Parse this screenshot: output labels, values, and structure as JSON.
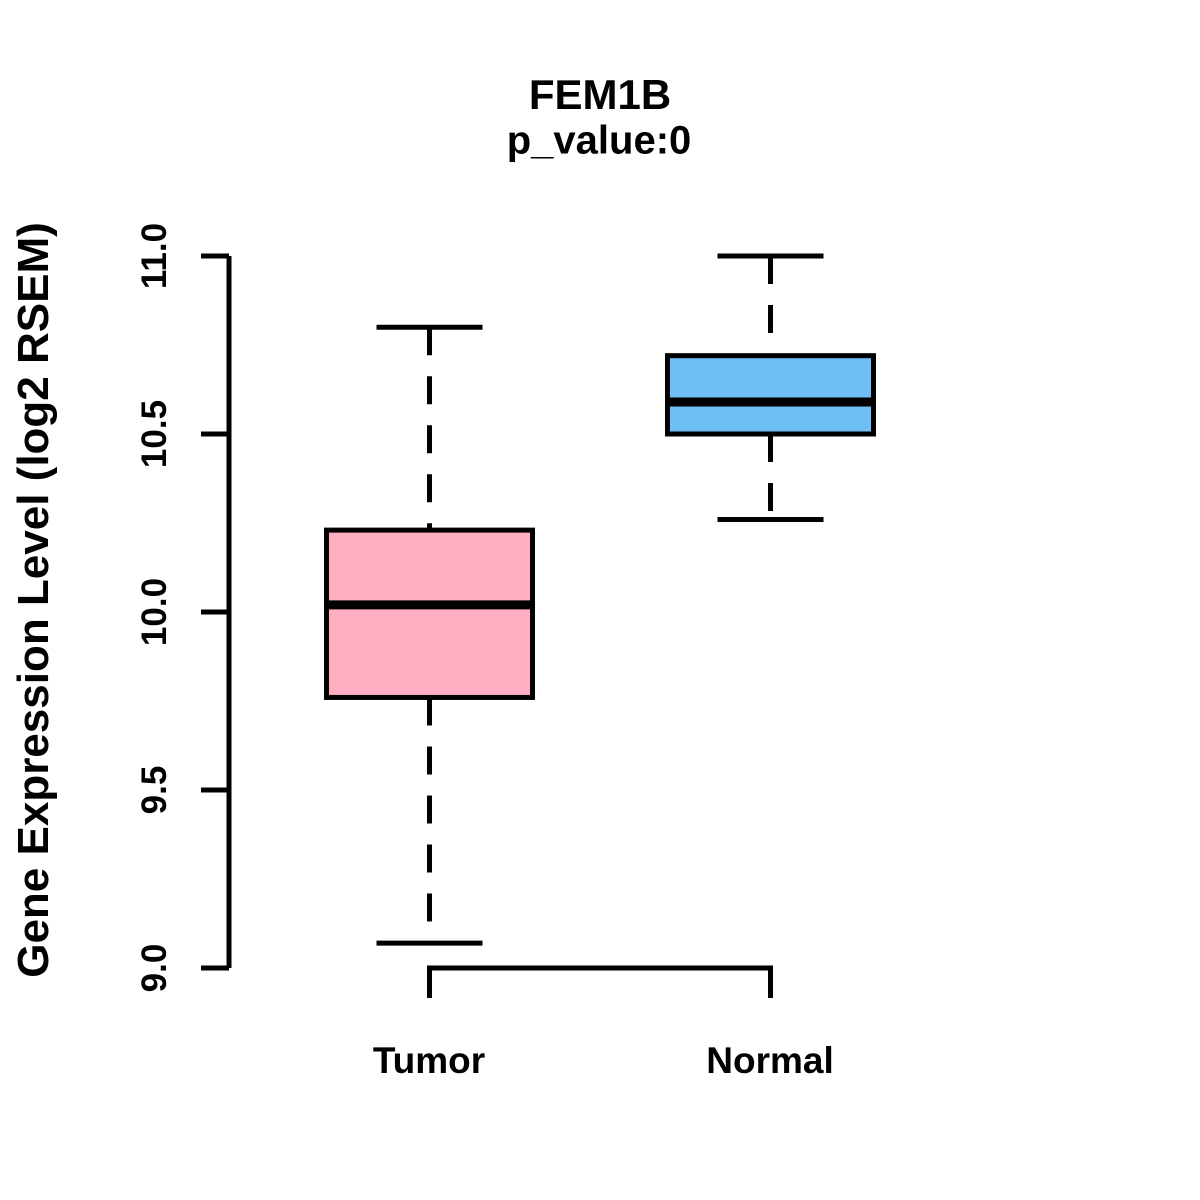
{
  "chart_data": {
    "type": "boxplot",
    "title": "FEM1B",
    "subtitle": "p_value:0",
    "ylabel": "Gene Expression Level (log2 RSEM)",
    "xlabel": "",
    "ylim": [
      9.0,
      11.0
    ],
    "yticks": [
      9.0,
      9.5,
      10.0,
      10.5,
      11.0
    ],
    "ytick_labels": [
      "9.0",
      "9.5",
      "10.0",
      "10.5",
      "11.0"
    ],
    "grid": "off",
    "legend": "none",
    "line_color": "#000000",
    "background_color": "#ffffff",
    "groups": [
      {
        "label": "Tumor",
        "fill_color": "#ffafc1",
        "lower_whisker": 9.07,
        "q1": 9.76,
        "median": 10.02,
        "q3": 10.23,
        "upper_whisker": 10.8
      },
      {
        "label": "Normal",
        "fill_color": "#6fbff7",
        "lower_whisker": 10.26,
        "q1": 10.5,
        "median": 10.59,
        "q3": 10.72,
        "upper_whisker": 11.0
      }
    ]
  }
}
